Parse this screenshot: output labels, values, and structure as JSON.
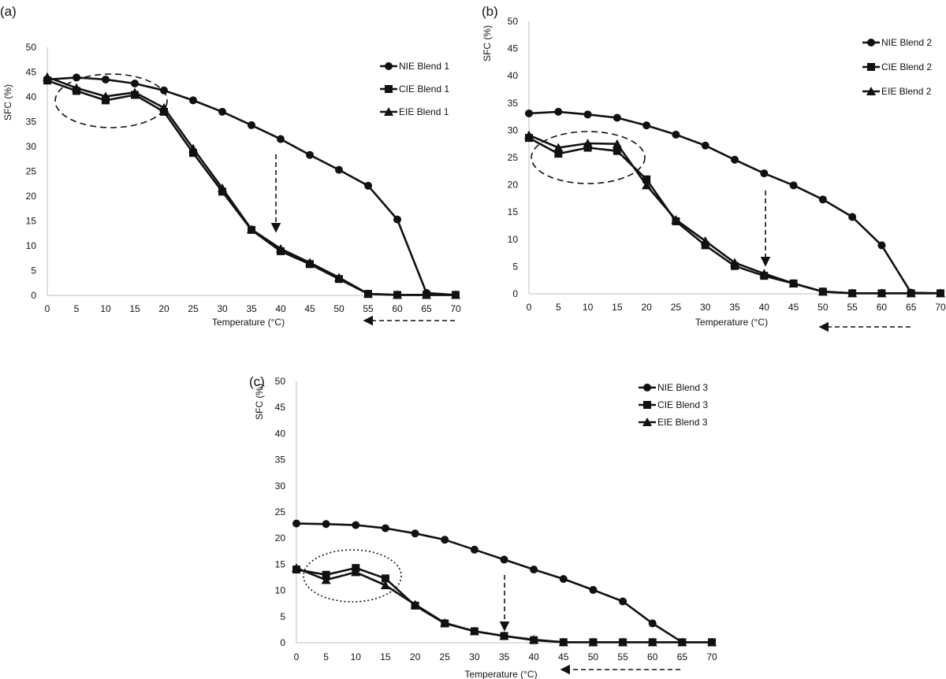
{
  "chart_data": [
    {
      "type": "line",
      "panel_label": "(a)",
      "xlabel": "Temperature (°C)",
      "ylabel": "SFC (%)",
      "x": [
        0,
        5,
        10,
        15,
        20,
        25,
        30,
        35,
        40,
        45,
        50,
        55,
        60,
        65,
        70
      ],
      "xlim": [
        0,
        70
      ],
      "ylim": [
        0,
        50
      ],
      "xticks": [
        "0",
        "5",
        "10",
        "15",
        "20",
        "25",
        "30",
        "35",
        "40",
        "45",
        "50",
        "55",
        "60",
        "65",
        "70"
      ],
      "yticks": [
        "0",
        "5",
        "10",
        "15",
        "20",
        "25",
        "30",
        "35",
        "40",
        "45",
        "50"
      ],
      "grid": false,
      "legend_position": "top-right",
      "series": [
        {
          "name": "NIE Blend 1",
          "marker": "circle",
          "values": [
            43.5,
            43.9,
            43.5,
            42.7,
            41.3,
            39.3,
            37.0,
            34.3,
            31.5,
            28.3,
            25.3,
            22.1,
            15.3,
            0.5,
            0.1
          ]
        },
        {
          "name": "CIE Blend 1",
          "marker": "square",
          "values": [
            43.3,
            41.2,
            39.3,
            40.4,
            37.0,
            28.7,
            20.9,
            13.2,
            8.9,
            6.3,
            3.3,
            0.3,
            0.1,
            0.1,
            0.1
          ]
        },
        {
          "name": "EIE Blend 1",
          "marker": "triangle",
          "values": [
            44.0,
            41.8,
            40.1,
            40.9,
            37.8,
            29.6,
            21.6,
            13.3,
            9.4,
            6.6,
            3.6,
            0.3,
            0.1,
            0.1,
            0.1
          ]
        }
      ]
    },
    {
      "type": "line",
      "panel_label": "(b)",
      "xlabel": "Temperature (°C)",
      "ylabel": "SFC (%)",
      "x": [
        0,
        5,
        10,
        15,
        20,
        25,
        30,
        35,
        40,
        45,
        50,
        55,
        60,
        65,
        70
      ],
      "xlim": [
        0,
        70
      ],
      "ylim": [
        0,
        50
      ],
      "xticks": [
        "0",
        "5",
        "10",
        "15",
        "20",
        "25",
        "30",
        "35",
        "40",
        "45",
        "50",
        "55",
        "60",
        "65",
        "70"
      ],
      "yticks": [
        "0",
        "5",
        "10",
        "15",
        "20",
        "25",
        "30",
        "35",
        "40",
        "45",
        "50"
      ],
      "grid": false,
      "legend_position": "top-right",
      "series": [
        {
          "name": "NIE Blend 2",
          "marker": "circle",
          "values": [
            33.1,
            33.4,
            32.9,
            32.3,
            30.9,
            29.2,
            27.2,
            24.6,
            22.1,
            19.9,
            17.3,
            14.1,
            8.9,
            0.2,
            0.1
          ]
        },
        {
          "name": "CIE Blend 2",
          "marker": "square",
          "values": [
            28.6,
            25.7,
            26.8,
            26.2,
            21.0,
            13.3,
            8.9,
            5.1,
            3.3,
            1.9,
            0.4,
            0.1,
            0.1,
            0.1,
            0.1
          ]
        },
        {
          "name": "EIE Blend 2",
          "marker": "triangle",
          "values": [
            29.1,
            26.8,
            27.6,
            27.5,
            19.9,
            13.6,
            9.7,
            5.7,
            3.7,
            1.9,
            0.4,
            0.1,
            0.1,
            0.1,
            0.1
          ]
        }
      ]
    },
    {
      "type": "line",
      "panel_label": "(c)",
      "xlabel": "Temperature (°C)",
      "ylabel": "SFC (%)",
      "x": [
        0,
        5,
        10,
        15,
        20,
        25,
        30,
        35,
        40,
        45,
        50,
        55,
        60,
        65,
        70
      ],
      "xlim": [
        0,
        70
      ],
      "ylim": [
        0,
        50
      ],
      "xticks": [
        "0",
        "5",
        "10",
        "15",
        "20",
        "25",
        "30",
        "35",
        "40",
        "45",
        "50",
        "55",
        "60",
        "65",
        "70"
      ],
      "yticks": [
        "0",
        "5",
        "10",
        "15",
        "20",
        "25",
        "30",
        "35",
        "40",
        "45",
        "50"
      ],
      "grid": false,
      "legend_position": "top-right",
      "series": [
        {
          "name": "NIE Blend 3",
          "marker": "circle",
          "values": [
            22.8,
            22.7,
            22.5,
            21.9,
            20.9,
            19.7,
            17.8,
            15.9,
            14.0,
            12.2,
            10.1,
            7.9,
            3.7,
            0.1,
            0.1
          ]
        },
        {
          "name": "CIE Blend 3",
          "marker": "square",
          "values": [
            14.0,
            13.0,
            14.3,
            12.3,
            7.1,
            3.7,
            2.2,
            1.3,
            0.5,
            0.1,
            0.1,
            0.1,
            0.1,
            0.1,
            0.1
          ]
        },
        {
          "name": "EIE Blend 3",
          "marker": "triangle",
          "values": [
            14.3,
            12.0,
            13.5,
            11.0,
            7.3,
            3.8,
            2.2,
            1.3,
            0.6,
            0.1,
            0.1,
            0.1,
            0.1,
            0.1,
            0.1
          ]
        }
      ]
    }
  ],
  "colors": {
    "line": "#111111",
    "axis": "#bfbfbf",
    "annotation": "#111111"
  }
}
